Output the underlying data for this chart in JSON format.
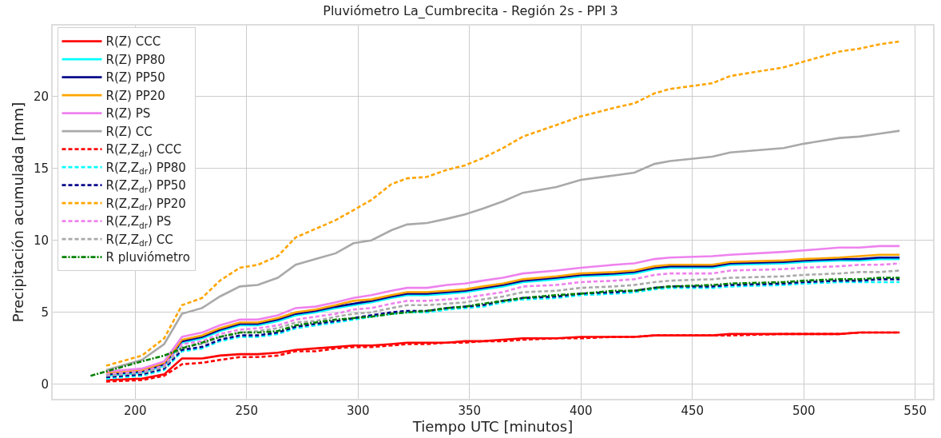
{
  "chart_data": {
    "type": "line",
    "title": "Pluviómetro La_Cumbrecita - Región 2s - PPI 3",
    "xlabel": "Tiempo UTC [minutos]",
    "ylabel": "Precipitación acumulada [mm]",
    "x": [
      187,
      203,
      213,
      221,
      230,
      238,
      247,
      255,
      264,
      272,
      281,
      290,
      298,
      306,
      315,
      322,
      331,
      340,
      348,
      356,
      365,
      374,
      389,
      400,
      415,
      424,
      433,
      440,
      459,
      467,
      491,
      500,
      516,
      525,
      534,
      543
    ],
    "xlim": [
      163,
      558
    ],
    "xticks": [
      200,
      250,
      300,
      350,
      400,
      450,
      500,
      550
    ],
    "ylim": [
      -1,
      24.9
    ],
    "yticks": [
      0,
      5,
      10,
      15,
      20
    ],
    "grid": true,
    "legend": "top left",
    "marker": "none",
    "series": [
      {
        "name": "R(Z) CCC",
        "color": "#ff0000",
        "line_style": "solid",
        "values": [
          0.3,
          0.4,
          0.7,
          1.8,
          1.8,
          2.0,
          2.1,
          2.1,
          2.2,
          2.4,
          2.5,
          2.6,
          2.7,
          2.7,
          2.8,
          2.9,
          2.9,
          2.9,
          3.0,
          3.0,
          3.1,
          3.2,
          3.2,
          3.3,
          3.3,
          3.3,
          3.4,
          3.4,
          3.4,
          3.5,
          3.5,
          3.5,
          3.5,
          3.6,
          3.6,
          3.6
        ]
      },
      {
        "name": "R(Z) PP80",
        "color": "#00ffff",
        "line_style": "solid",
        "values": [
          0.6,
          0.8,
          1.3,
          2.9,
          3.2,
          3.7,
          4.1,
          4.1,
          4.4,
          4.8,
          5.0,
          5.3,
          5.5,
          5.7,
          6.0,
          6.2,
          6.2,
          6.3,
          6.4,
          6.6,
          6.8,
          7.1,
          7.3,
          7.5,
          7.6,
          7.7,
          8.0,
          8.1,
          8.1,
          8.3,
          8.4,
          8.5,
          8.6,
          8.6,
          8.7,
          8.7
        ]
      },
      {
        "name": "R(Z) PP50",
        "color": "#00008b",
        "line_style": "solid",
        "values": [
          0.7,
          0.9,
          1.4,
          3.0,
          3.3,
          3.8,
          4.2,
          4.2,
          4.5,
          4.9,
          5.1,
          5.4,
          5.6,
          5.8,
          6.1,
          6.3,
          6.3,
          6.4,
          6.5,
          6.7,
          6.9,
          7.2,
          7.4,
          7.6,
          7.7,
          7.8,
          8.1,
          8.2,
          8.2,
          8.4,
          8.5,
          8.6,
          8.7,
          8.7,
          8.8,
          8.8
        ]
      },
      {
        "name": "R(Z) PP20",
        "color": "#ffa500",
        "line_style": "solid",
        "values": [
          0.8,
          1.0,
          1.5,
          3.1,
          3.4,
          3.9,
          4.3,
          4.3,
          4.6,
          5.0,
          5.2,
          5.5,
          5.8,
          5.9,
          6.2,
          6.4,
          6.4,
          6.5,
          6.6,
          6.8,
          7.0,
          7.3,
          7.5,
          7.7,
          7.8,
          7.9,
          8.2,
          8.3,
          8.3,
          8.5,
          8.6,
          8.7,
          8.8,
          8.9,
          9.0,
          9.0
        ]
      },
      {
        "name": "R(Z) PS",
        "color": "#ee82ee",
        "line_style": "solid",
        "values": [
          0.9,
          1.1,
          1.6,
          3.3,
          3.6,
          4.1,
          4.5,
          4.5,
          4.8,
          5.3,
          5.4,
          5.7,
          6.0,
          6.2,
          6.5,
          6.7,
          6.7,
          6.9,
          7.0,
          7.2,
          7.4,
          7.7,
          7.9,
          8.1,
          8.3,
          8.4,
          8.7,
          8.8,
          8.9,
          9.0,
          9.2,
          9.3,
          9.5,
          9.5,
          9.6,
          9.6
        ]
      },
      {
        "name": "R(Z) CC",
        "color": "#a9a9a9",
        "line_style": "solid",
        "values": [
          1.0,
          1.7,
          2.8,
          4.9,
          5.3,
          6.1,
          6.8,
          6.9,
          7.4,
          8.3,
          8.7,
          9.1,
          9.8,
          10.0,
          10.7,
          11.1,
          11.2,
          11.5,
          11.8,
          12.2,
          12.7,
          13.3,
          13.7,
          14.2,
          14.5,
          14.7,
          15.3,
          15.5,
          15.8,
          16.1,
          16.4,
          16.7,
          17.1,
          17.2,
          17.4,
          17.6
        ]
      },
      {
        "name": "R(Z,Z$_{dr}$) CCC",
        "color": "#ff0000",
        "line_style": "dashed",
        "values": [
          0.2,
          0.3,
          0.6,
          1.4,
          1.5,
          1.7,
          1.9,
          1.9,
          2.0,
          2.3,
          2.3,
          2.5,
          2.6,
          2.6,
          2.7,
          2.8,
          2.8,
          2.9,
          2.9,
          3.0,
          3.0,
          3.1,
          3.2,
          3.2,
          3.3,
          3.3,
          3.4,
          3.4,
          3.4,
          3.4,
          3.5,
          3.5,
          3.5,
          3.6,
          3.6,
          3.6
        ]
      },
      {
        "name": "R(Z,Z$_{dr}$) PP80",
        "color": "#00ffff",
        "line_style": "dashed",
        "values": [
          0.4,
          0.6,
          1.0,
          2.3,
          2.5,
          3.0,
          3.3,
          3.3,
          3.5,
          3.9,
          4.1,
          4.3,
          4.5,
          4.7,
          4.9,
          5.0,
          5.0,
          5.2,
          5.3,
          5.4,
          5.7,
          5.9,
          6.0,
          6.2,
          6.3,
          6.4,
          6.6,
          6.7,
          6.7,
          6.8,
          6.9,
          7.0,
          7.1,
          7.1,
          7.1,
          7.1
        ]
      },
      {
        "name": "R(Z,Z$_{dr}$) PP50",
        "color": "#00008b",
        "line_style": "dashed",
        "values": [
          0.5,
          0.7,
          1.1,
          2.4,
          2.6,
          3.1,
          3.4,
          3.4,
          3.6,
          4.0,
          4.2,
          4.4,
          4.6,
          4.8,
          5.0,
          5.1,
          5.1,
          5.3,
          5.4,
          5.5,
          5.8,
          6.0,
          6.1,
          6.3,
          6.4,
          6.5,
          6.7,
          6.8,
          6.8,
          6.9,
          7.0,
          7.1,
          7.2,
          7.2,
          7.3,
          7.3
        ]
      },
      {
        "name": "R(Z,Z$_{dr}$) PP20",
        "color": "#ffa500",
        "line_style": "dashed",
        "values": [
          1.3,
          2.0,
          3.2,
          5.5,
          6.0,
          7.2,
          8.1,
          8.3,
          8.9,
          10.2,
          10.8,
          11.4,
          12.1,
          12.8,
          13.9,
          14.3,
          14.4,
          14.9,
          15.2,
          15.7,
          16.4,
          17.2,
          18.0,
          18.6,
          19.2,
          19.5,
          20.2,
          20.5,
          20.9,
          21.4,
          22.0,
          22.4,
          23.1,
          23.3,
          23.6,
          23.8
        ]
      },
      {
        "name": "R(Z,Z$_{dr}$) PS",
        "color": "#ee82ee",
        "line_style": "dashed",
        "values": [
          0.7,
          0.9,
          1.3,
          2.8,
          3.0,
          3.5,
          3.8,
          3.9,
          4.1,
          4.5,
          4.7,
          4.9,
          5.2,
          5.3,
          5.6,
          5.8,
          5.8,
          5.9,
          6.0,
          6.2,
          6.4,
          6.8,
          6.9,
          7.1,
          7.2,
          7.3,
          7.6,
          7.7,
          7.7,
          7.9,
          8.0,
          8.1,
          8.2,
          8.3,
          8.3,
          8.4
        ]
      },
      {
        "name": "R(Z,Z$_{dr}$) CC",
        "color": "#a9a9a9",
        "line_style": "dashed",
        "values": [
          0.6,
          0.8,
          1.2,
          2.6,
          2.8,
          3.3,
          3.6,
          3.7,
          3.9,
          4.3,
          4.4,
          4.7,
          4.9,
          5.0,
          5.3,
          5.5,
          5.5,
          5.6,
          5.7,
          5.9,
          6.1,
          6.4,
          6.5,
          6.7,
          6.8,
          6.9,
          7.1,
          7.2,
          7.3,
          7.4,
          7.5,
          7.6,
          7.7,
          7.8,
          7.8,
          7.9
        ]
      },
      {
        "name": "R pluviómetro",
        "color": "#008000",
        "line_style": "dashdot",
        "x": [
          180,
          187,
          203,
          213,
          221,
          230,
          238,
          247,
          255,
          264,
          272,
          281,
          290,
          298,
          306,
          315,
          322,
          331,
          340,
          348,
          356,
          365,
          374,
          389,
          400,
          415,
          424,
          433,
          440,
          459,
          467,
          491,
          500,
          516,
          525,
          534,
          543
        ],
        "values": [
          0.6,
          0.9,
          1.6,
          2.0,
          2.5,
          2.9,
          3.3,
          3.6,
          3.6,
          3.7,
          4.1,
          4.3,
          4.5,
          4.6,
          4.7,
          4.9,
          5.0,
          5.1,
          5.3,
          5.4,
          5.6,
          5.8,
          6.0,
          6.2,
          6.3,
          6.5,
          6.5,
          6.7,
          6.8,
          6.9,
          7.0,
          7.1,
          7.2,
          7.3,
          7.3,
          7.4,
          7.4
        ]
      }
    ]
  }
}
